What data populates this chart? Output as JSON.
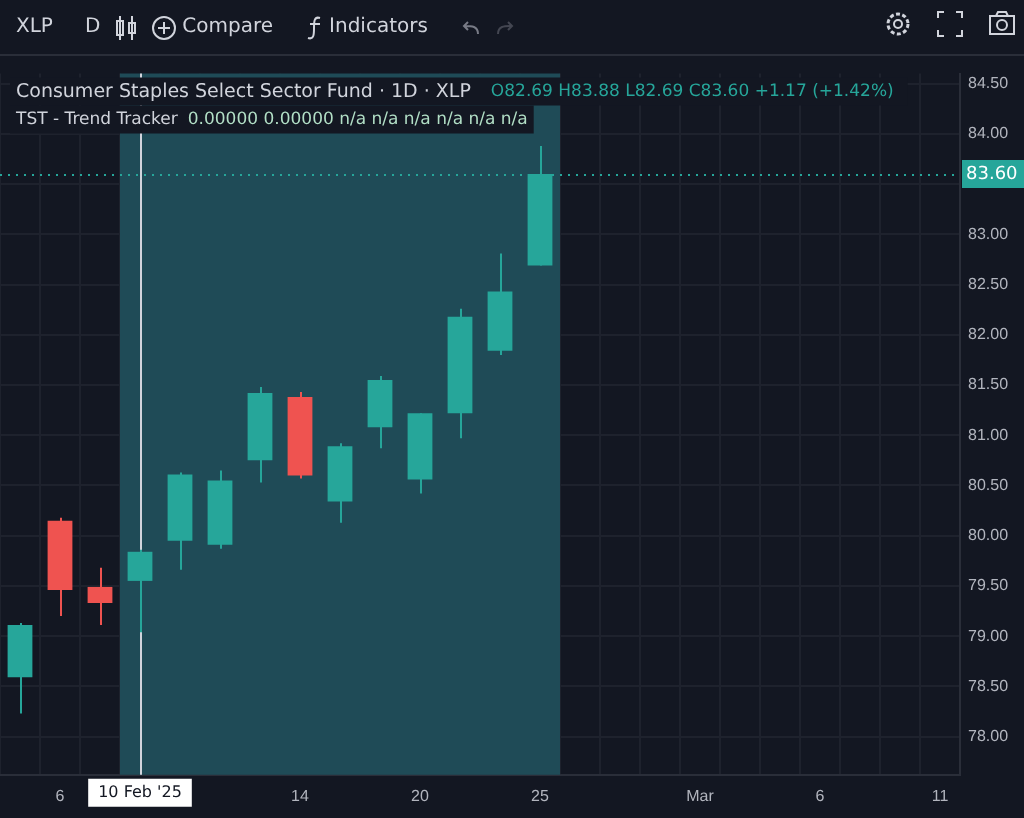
{
  "chart_data": {
    "type": "candlestick",
    "title": "Consumer Staples Select Sector Fund · 1D · XLP",
    "categories": [
      null,
      "6",
      null,
      "10 Feb '25",
      null,
      null,
      null,
      "14",
      null,
      null,
      "20",
      null,
      null,
      "25",
      null,
      null,
      null,
      "Mar",
      null,
      null,
      "6",
      null,
      null,
      "11"
    ],
    "ohlc": [
      [
        78.59,
        79.13,
        78.23,
        79.11
      ],
      [
        80.15,
        80.18,
        79.2,
        79.46
      ],
      [
        79.49,
        79.68,
        79.11,
        79.33
      ],
      [
        79.55,
        79.86,
        79.04,
        79.84
      ],
      [
        79.95,
        80.63,
        79.66,
        80.61
      ],
      [
        79.91,
        80.65,
        79.87,
        80.55
      ],
      [
        80.75,
        81.48,
        80.53,
        81.42
      ],
      [
        81.38,
        81.43,
        80.57,
        80.6
      ],
      [
        80.34,
        80.92,
        80.13,
        80.89
      ],
      [
        81.08,
        81.59,
        80.87,
        81.55
      ],
      [
        80.56,
        81.22,
        80.42,
        81.22
      ],
      [
        81.22,
        82.26,
        80.97,
        82.18
      ],
      [
        81.84,
        82.81,
        81.8,
        82.43
      ],
      [
        82.69,
        83.88,
        82.69,
        83.6
      ],
      null,
      null,
      null,
      null,
      null,
      null,
      null,
      null,
      null,
      null
    ],
    "colors": [
      "#26a69a",
      "#ef5350",
      "#ef5350",
      "#26a69a",
      "#26a69a",
      "#26a69a",
      "#26a69a",
      "#ef5350",
      "#26a69a",
      "#26a69a",
      "#26a69a",
      "#26a69a",
      "#26a69a",
      "#26a69a",
      null,
      null,
      null,
      null,
      null,
      null,
      null,
      null,
      null,
      null
    ],
    "ylim": [
      77.62,
      84.6
    ],
    "yticks": [
      {
        "value": 78,
        "label": "78.00"
      },
      {
        "value": 78.5,
        "label": "78.50"
      },
      {
        "value": 79,
        "label": "79.00"
      },
      {
        "value": 79.5,
        "label": "79.50"
      },
      {
        "value": 80,
        "label": "80.00"
      },
      {
        "value": 80.5,
        "label": "80.50"
      },
      {
        "value": 81,
        "label": "81.00"
      },
      {
        "value": 81.5,
        "label": "81.50"
      },
      {
        "value": 82,
        "label": "82.00"
      },
      {
        "value": 82.5,
        "label": "82.50"
      },
      {
        "value": 83,
        "label": "83.00"
      },
      {
        "value": 83.5,
        "label": null
      },
      {
        "value": 84,
        "label": "84.00"
      },
      {
        "value": 84.5,
        "label": "84.50"
      }
    ],
    "grid": true,
    "bands": [
      {
        "axis": "x",
        "from": "10 Feb '25",
        "to": "25",
        "color": "#1f4b57"
      }
    ],
    "ref_lines": [
      {
        "axis": "y",
        "value": 83.6,
        "label": "83.60",
        "color": "#26a69a",
        "line_style": "dotted"
      },
      {
        "axis": "x",
        "value": "10 Feb '25",
        "color": "#d1d4dc",
        "line_style": "solid"
      }
    ],
    "annotations": [
      "XLP",
      "D",
      "Compare",
      "Indicators",
      "O82.69 H83.88 L82.69 C83.60 +1.17 (+1.42%)",
      "TST - Trend Tracker",
      "0.00000 0.00000 n/a n/a n/a n/a n/a n/a"
    ],
    "legend": false
  }
}
